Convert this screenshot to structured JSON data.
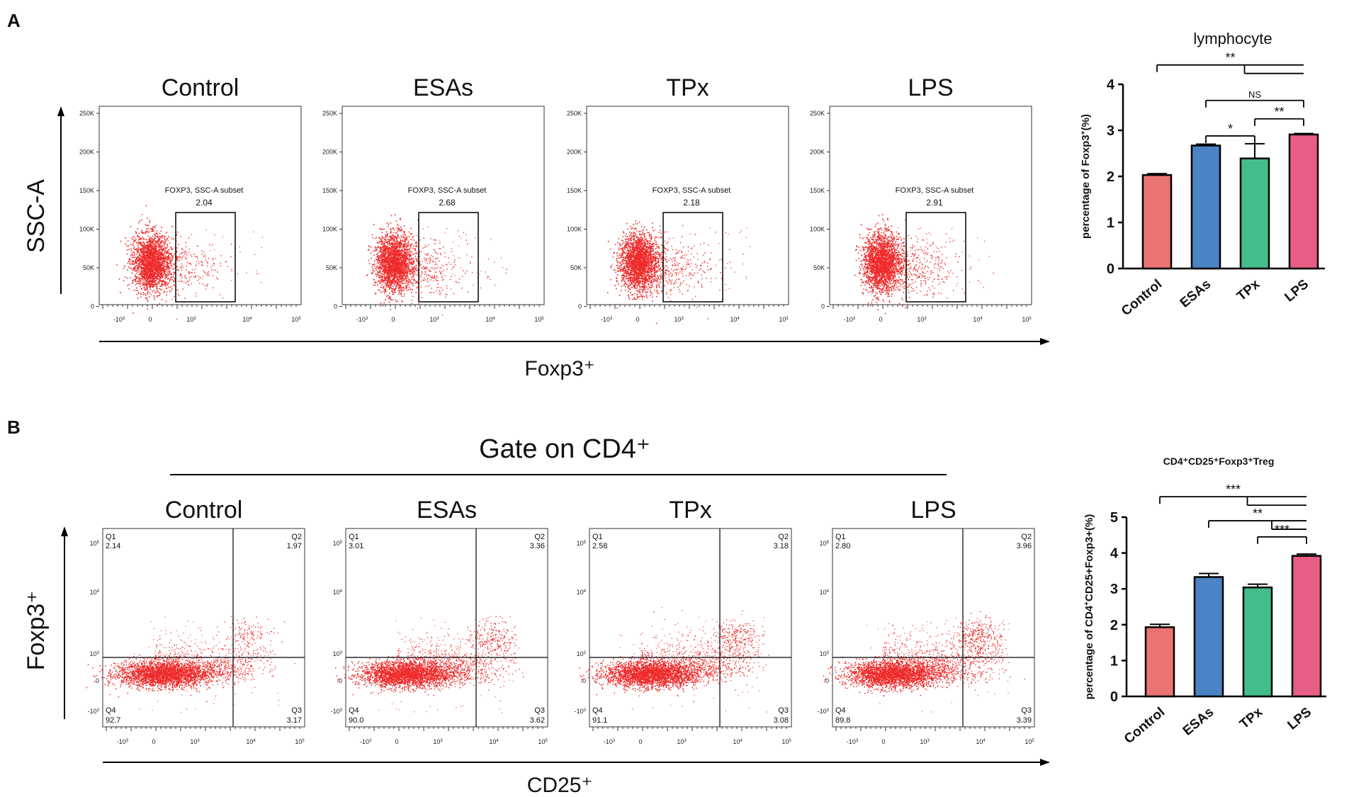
{
  "panels": {
    "A": {
      "letter": "A",
      "y_label": "SSC-A",
      "x_label": "Foxp3⁺",
      "plots": [
        {
          "title": "Control",
          "gate_name": "FOXP3, SSC-A subset",
          "gate_value": "2.04"
        },
        {
          "title": "ESAs",
          "gate_name": "FOXP3, SSC-A subset",
          "gate_value": "2.68"
        },
        {
          "title": "TPx",
          "gate_name": "FOXP3, SSC-A subset",
          "gate_value": "2.18"
        },
        {
          "title": "LPS",
          "gate_name": "FOXP3, SSC-A subset",
          "gate_value": "2.91"
        }
      ],
      "y_ticks": [
        "250K",
        "200K",
        "150K",
        "100K",
        "50K",
        "0"
      ],
      "x_ticks": [
        {
          "b": "-10",
          "e": "3"
        },
        {
          "b": "0",
          "e": ""
        },
        {
          "b": "10",
          "e": "3"
        },
        {
          "b": "10",
          "e": "4"
        },
        {
          "b": "10",
          "e": "5"
        }
      ]
    },
    "B": {
      "letter": "B",
      "gate_title": "Gate on CD4⁺",
      "y_label": "Foxp3⁺",
      "x_label": "CD25⁺",
      "plots": [
        {
          "title": "Control",
          "q1": "2.14",
          "q2": "1.97",
          "q3": "3.17",
          "q4": "92.7"
        },
        {
          "title": "ESAs",
          "q1": "3.01",
          "q2": "3.36",
          "q3": "3.62",
          "q4": "90.0"
        },
        {
          "title": "TPx",
          "q1": "2.58",
          "q2": "3.18",
          "q3": "3.08",
          "q4": "91.1"
        },
        {
          "title": "LPS",
          "q1": "2.80",
          "q2": "3.96",
          "q3": "3.39",
          "q4": "89.8"
        }
      ],
      "quadrant_labels": [
        "Q1",
        "Q2",
        "Q3",
        "Q4"
      ],
      "y_ticks": [
        {
          "b": "10",
          "e": "5"
        },
        {
          "b": "10",
          "e": "4"
        },
        {
          "b": "10",
          "e": "3"
        },
        {
          "b": "0",
          "e": ""
        },
        {
          "b": "-10",
          "e": "3"
        }
      ],
      "x_ticks": [
        {
          "b": "-10",
          "e": "3"
        },
        {
          "b": "0",
          "e": ""
        },
        {
          "b": "10",
          "e": "3"
        },
        {
          "b": "10",
          "e": "4"
        },
        {
          "b": "10",
          "e": "5"
        }
      ]
    }
  },
  "colors": {
    "dots": "#ee2b2b",
    "Control": "#e97472",
    "ESAs": "#4b83c4",
    "TPx": "#43bd8b",
    "LPS": "#e75d86"
  },
  "chart_data": [
    {
      "type": "bar",
      "title": "lymphocyte",
      "ylabel_pre": "percentage of Foxp3",
      "ylabel_sup": "+",
      "ylabel_post": "(%)",
      "categories": [
        "Control",
        "ESAs",
        "TPx",
        "LPS"
      ],
      "values": [
        2.03,
        2.67,
        2.39,
        2.91
      ],
      "errors": [
        0.03,
        0.03,
        0.32,
        0.02
      ],
      "ylim": [
        0,
        4
      ],
      "yticks": [
        0,
        1,
        2,
        3,
        4
      ],
      "significance": [
        {
          "label": "**",
          "from": "Control",
          "to": [
            "ESAs",
            "TPx",
            "LPS"
          ],
          "y": 4.42
        },
        {
          "label": "NS",
          "from": "ESAs",
          "to": [
            "LPS"
          ],
          "y": 3.65
        },
        {
          "label": "*",
          "from": "ESAs",
          "to": [
            "TPx"
          ],
          "y": 2.88
        },
        {
          "label": "**",
          "from": "TPx",
          "to": [
            "LPS"
          ],
          "y": 3.25
        }
      ]
    },
    {
      "type": "bar",
      "title": "CD4⁺CD25⁺Foxp3⁺Treg",
      "ylabel_pre": "percentage of CD4",
      "ylabel_sup": "+",
      "ylabel_post": "CD25+Foxp3+(%)",
      "categories": [
        "Control",
        "ESAs",
        "TPx",
        "LPS"
      ],
      "values": [
        1.93,
        3.33,
        3.04,
        3.92
      ],
      "errors": [
        0.08,
        0.1,
        0.09,
        0.05
      ],
      "ylim": [
        0,
        5
      ],
      "yticks": [
        0,
        1,
        2,
        3,
        4,
        5
      ],
      "significance": [
        {
          "label": "***",
          "from": "Control",
          "to": [
            "ESAs",
            "TPx",
            "LPS"
          ],
          "y": 5.57
        },
        {
          "label": "**",
          "from": "ESAs",
          "to": [
            "TPx",
            "LPS"
          ],
          "y": 4.9
        },
        {
          "label": "***",
          "from": "TPx",
          "to": [
            "LPS"
          ],
          "y": 4.45
        }
      ]
    }
  ]
}
